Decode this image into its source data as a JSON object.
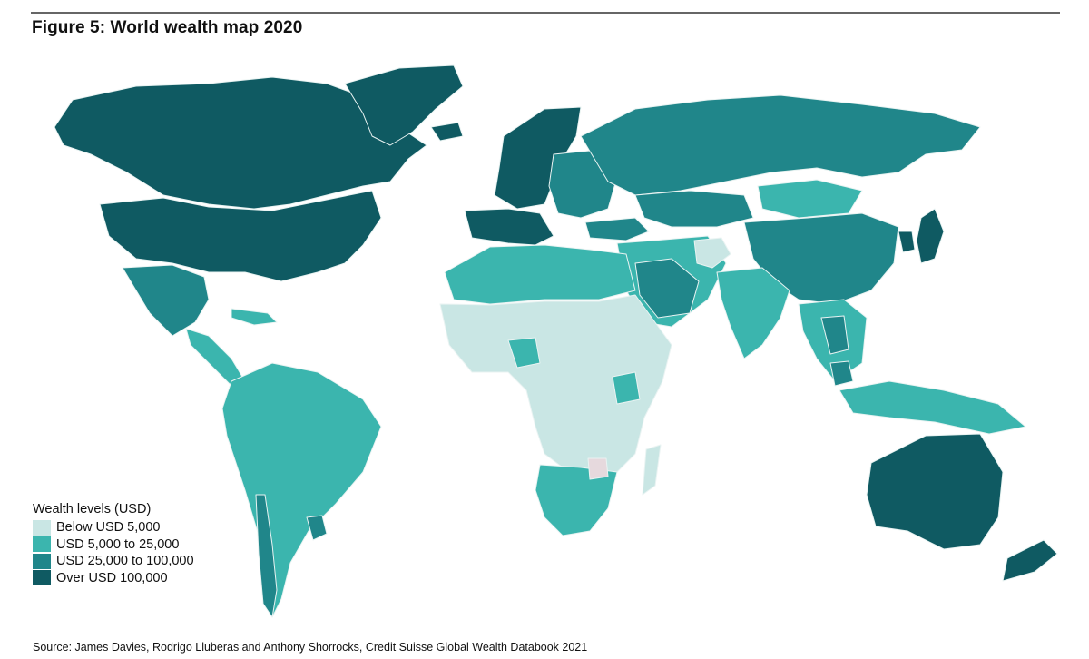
{
  "figure": {
    "title": "Figure 5: World wealth map 2020",
    "source": "Source: James Davies, Rodrigo Lluberas and Anthony Shorrocks, Credit Suisse Global Wealth Databook 2021"
  },
  "legend": {
    "title": "Wealth levels (USD)",
    "items": [
      {
        "key": "low",
        "label": "Below USD 5,000",
        "color": "#c9e6e4"
      },
      {
        "key": "lowmid",
        "label": "USD 5,000 to 25,000",
        "color": "#3bb5ae"
      },
      {
        "key": "highmid",
        "label": "USD 25,000 to 100,000",
        "color": "#20868a"
      },
      {
        "key": "high",
        "label": "Over USD 100,000",
        "color": "#0f5a62"
      }
    ]
  },
  "colors": {
    "border": "#e9f3f2",
    "no_data": "#e6d9dd",
    "title_rule": "#666666"
  },
  "regions": [
    {
      "name": "Canada",
      "level": "high"
    },
    {
      "name": "United States",
      "level": "high"
    },
    {
      "name": "Greenland",
      "level": "high"
    },
    {
      "name": "Mexico",
      "level": "highmid"
    },
    {
      "name": "Central America",
      "level": "lowmid"
    },
    {
      "name": "Caribbean",
      "level": "lowmid"
    },
    {
      "name": "South America",
      "level": "lowmid"
    },
    {
      "name": "Chile",
      "level": "highmid"
    },
    {
      "name": "Uruguay",
      "level": "highmid"
    },
    {
      "name": "Western Europe",
      "level": "high"
    },
    {
      "name": "Iberia and Italy",
      "level": "high"
    },
    {
      "name": "Eastern Europe",
      "level": "highmid"
    },
    {
      "name": "Iceland",
      "level": "high"
    },
    {
      "name": "Russia",
      "level": "highmid"
    },
    {
      "name": "Kazakhstan",
      "level": "highmid"
    },
    {
      "name": "Mongolia",
      "level": "lowmid"
    },
    {
      "name": "China",
      "level": "highmid"
    },
    {
      "name": "Japan",
      "level": "high"
    },
    {
      "name": "Korea",
      "level": "high"
    },
    {
      "name": "Middle East",
      "level": "lowmid"
    },
    {
      "name": "Turkey",
      "level": "highmid"
    },
    {
      "name": "Gulf States",
      "level": "highmid"
    },
    {
      "name": "Afghanistan",
      "level": "low"
    },
    {
      "name": "India",
      "level": "lowmid"
    },
    {
      "name": "Southeast Asia",
      "level": "lowmid"
    },
    {
      "name": "Thailand",
      "level": "highmid"
    },
    {
      "name": "Malaysia",
      "level": "highmid"
    },
    {
      "name": "Indonesia",
      "level": "lowmid"
    },
    {
      "name": "North Africa",
      "level": "lowmid"
    },
    {
      "name": "Sub-Saharan Africa",
      "level": "low"
    },
    {
      "name": "Nigeria",
      "level": "lowmid"
    },
    {
      "name": "Kenya",
      "level": "lowmid"
    },
    {
      "name": "Southern Africa",
      "level": "lowmid"
    },
    {
      "name": "Zimbabwe",
      "level": "no_data"
    },
    {
      "name": "Madagascar",
      "level": "low"
    },
    {
      "name": "Australia",
      "level": "high"
    },
    {
      "name": "New Zealand",
      "level": "high"
    }
  ]
}
